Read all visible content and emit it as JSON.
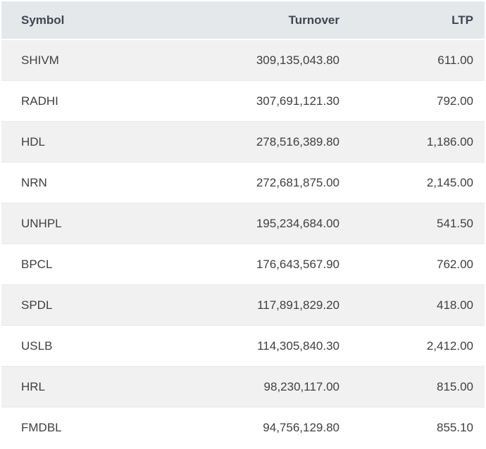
{
  "table": {
    "columns": [
      {
        "key": "symbol",
        "label": "Symbol",
        "align": "left"
      },
      {
        "key": "turnover",
        "label": "Turnover",
        "align": "right"
      },
      {
        "key": "ltp",
        "label": "LTP",
        "align": "right"
      }
    ],
    "rows": [
      {
        "symbol": "SHIVM",
        "turnover": "309,135,043.80",
        "ltp": "611.00"
      },
      {
        "symbol": "RADHI",
        "turnover": "307,691,121.30",
        "ltp": "792.00"
      },
      {
        "symbol": "HDL",
        "turnover": "278,516,389.80",
        "ltp": "1,186.00"
      },
      {
        "symbol": "NRN",
        "turnover": "272,681,875.00",
        "ltp": "2,145.00"
      },
      {
        "symbol": "UNHPL",
        "turnover": "195,234,684.00",
        "ltp": "541.50"
      },
      {
        "symbol": "BPCL",
        "turnover": "176,643,567.90",
        "ltp": "762.00"
      },
      {
        "symbol": "SPDL",
        "turnover": "117,891,829.20",
        "ltp": "418.00"
      },
      {
        "symbol": "USLB",
        "turnover": "114,305,840.30",
        "ltp": "2,412.00"
      },
      {
        "symbol": "HRL",
        "turnover": "98,230,117.00",
        "ltp": "815.00"
      },
      {
        "symbol": "FMDBL",
        "turnover": "94,756,129.80",
        "ltp": "855.10"
      }
    ]
  },
  "colors": {
    "header_bg": "#e5e8eb",
    "stripe_bg": "#f1f1f2",
    "row_bg": "#ffffff",
    "row_border": "#e9e9e9",
    "header_text": "#3f4650",
    "cell_text": "#404040"
  }
}
